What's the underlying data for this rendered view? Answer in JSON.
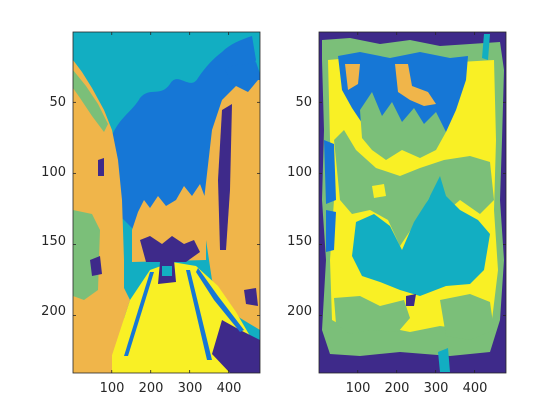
{
  "figure": {
    "background": "#ffffff"
  },
  "colors": {
    "c1": "#3e2a8a",
    "c2": "#1677d6",
    "c3": "#12aec2",
    "c4": "#7bbf79",
    "c5": "#f0b54a",
    "c6": "#f9f025"
  },
  "chart_data": [
    {
      "type": "heatmap",
      "description_role": "left label image (segmentation map)",
      "xlim": [
        1,
        480
      ],
      "ylim": [
        1,
        240
      ],
      "y_reversed": true,
      "xticks": [
        100,
        200,
        300,
        400
      ],
      "yticks": [
        50,
        100,
        150,
        200
      ],
      "xtick_labels": [
        "100",
        "200",
        "300",
        "400"
      ],
      "ytick_labels": [
        "50",
        "100",
        "150",
        "200"
      ],
      "grid": false
    },
    {
      "type": "heatmap",
      "description_role": "right label image (segmentation map)",
      "xlim": [
        1,
        480
      ],
      "ylim": [
        1,
        240
      ],
      "y_reversed": true,
      "xticks": [
        100,
        200,
        300,
        400
      ],
      "yticks": [
        50,
        100,
        150,
        200
      ],
      "xtick_labels": [
        "100",
        "200",
        "300",
        "400"
      ],
      "ytick_labels": [
        "50",
        "100",
        "150",
        "200"
      ],
      "grid": false
    }
  ]
}
